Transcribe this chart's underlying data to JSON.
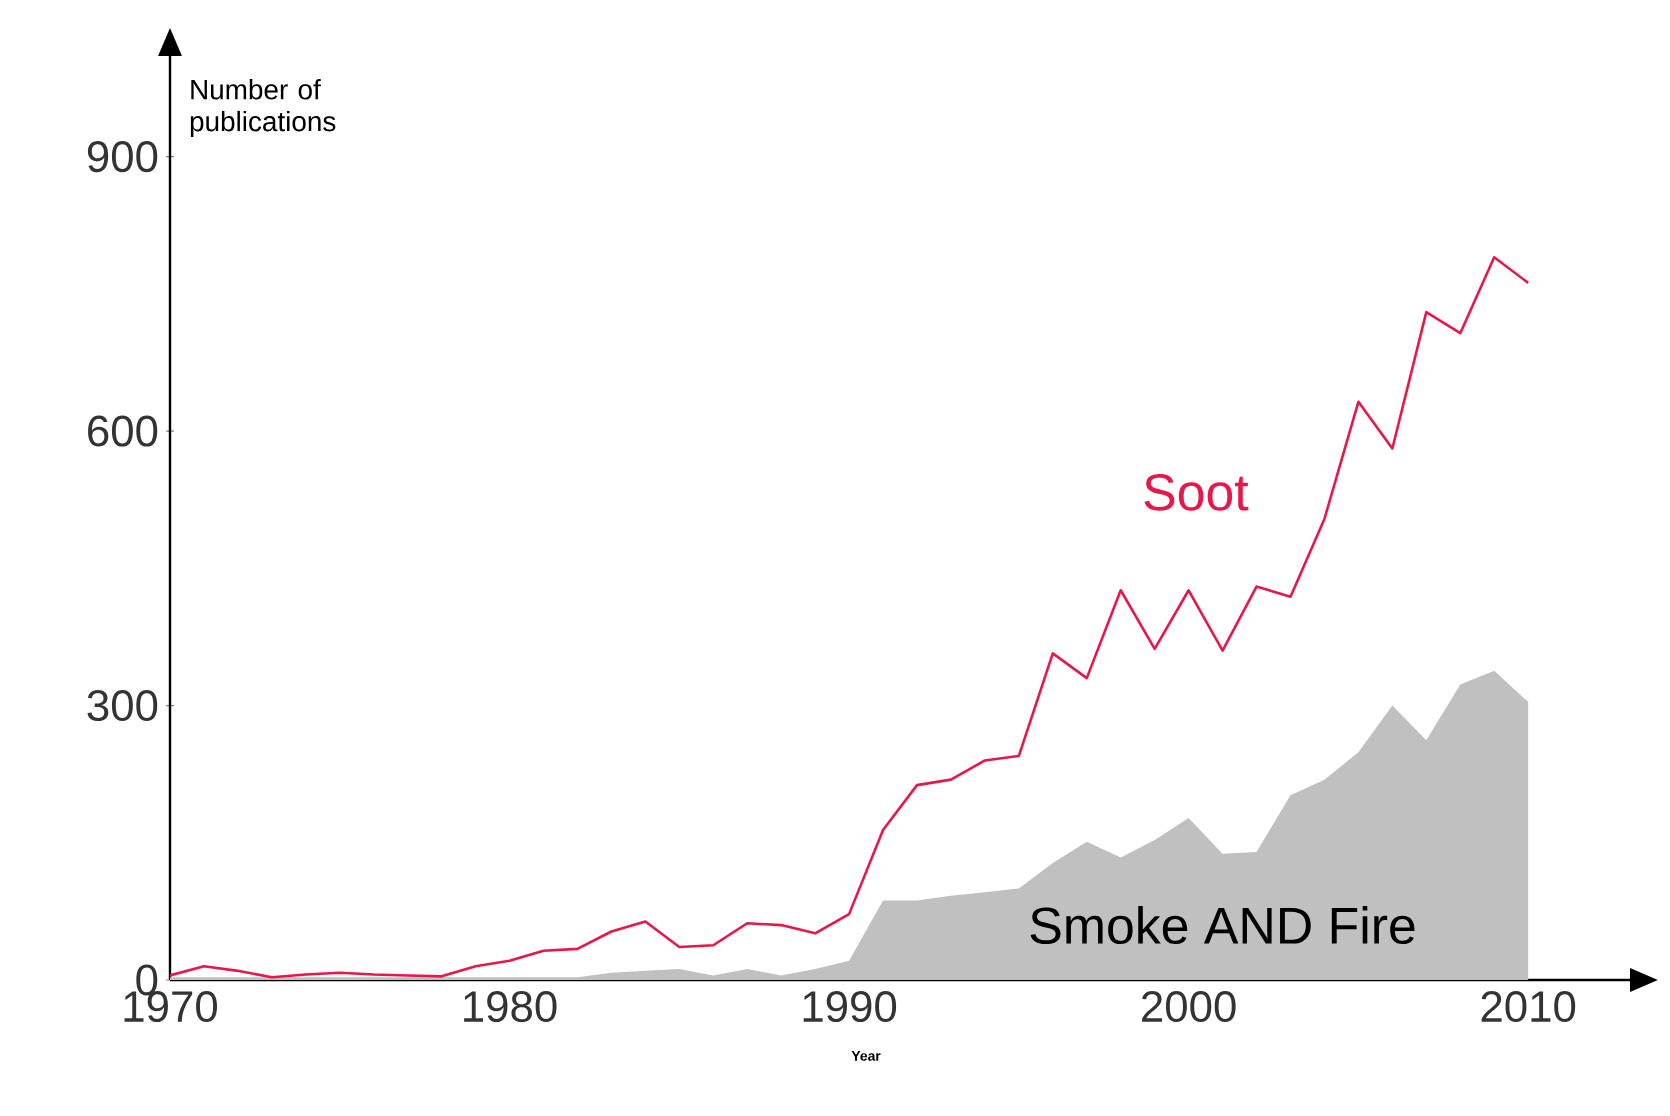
{
  "chart_data": {
    "type": "line",
    "xlabel": "Year",
    "ylabel": "Number of publications",
    "x": [
      1970,
      1971,
      1972,
      1973,
      1974,
      1975,
      1976,
      1977,
      1978,
      1979,
      1980,
      1981,
      1982,
      1983,
      1984,
      1985,
      1986,
      1987,
      1988,
      1989,
      1990,
      1991,
      1992,
      1993,
      1994,
      1995,
      1996,
      1997,
      1998,
      1999,
      2000,
      2001,
      2002,
      2003,
      2004,
      2005,
      2006,
      2007,
      2008,
      2009,
      2010
    ],
    "series": [
      {
        "name": "Smoke AND Fire",
        "type": "area",
        "color": "#c0c0c0",
        "values": [
          3,
          3,
          3,
          3,
          3,
          3,
          3,
          3,
          3,
          3,
          3,
          3,
          3,
          8,
          10,
          12,
          5,
          12,
          5,
          12,
          21,
          87,
          87,
          92,
          96,
          100,
          128,
          151,
          134,
          153,
          177,
          138,
          140,
          202,
          219,
          249,
          300,
          262,
          323,
          338,
          304
        ]
      },
      {
        "name": "Soot",
        "color": "#e8174a",
        "values": [
          5,
          15,
          10,
          3,
          6,
          8,
          6,
          5,
          4,
          15,
          21,
          32,
          34,
          53,
          64,
          36,
          38,
          62,
          60,
          51,
          72,
          164,
          213,
          219,
          240,
          245,
          357,
          330,
          426,
          362,
          426,
          360,
          430,
          419,
          504,
          632,
          581,
          730,
          707,
          790,
          762
        ]
      }
    ],
    "xlim": [
      1970,
      2013
    ],
    "ylim": [
      0,
      1010
    ],
    "xticks": [
      1970,
      1980,
      1990,
      2000,
      2010
    ],
    "yticks": [
      0,
      300,
      600,
      900
    ],
    "grid": false,
    "legend": false,
    "marker": "none",
    "line_style": "solid"
  }
}
